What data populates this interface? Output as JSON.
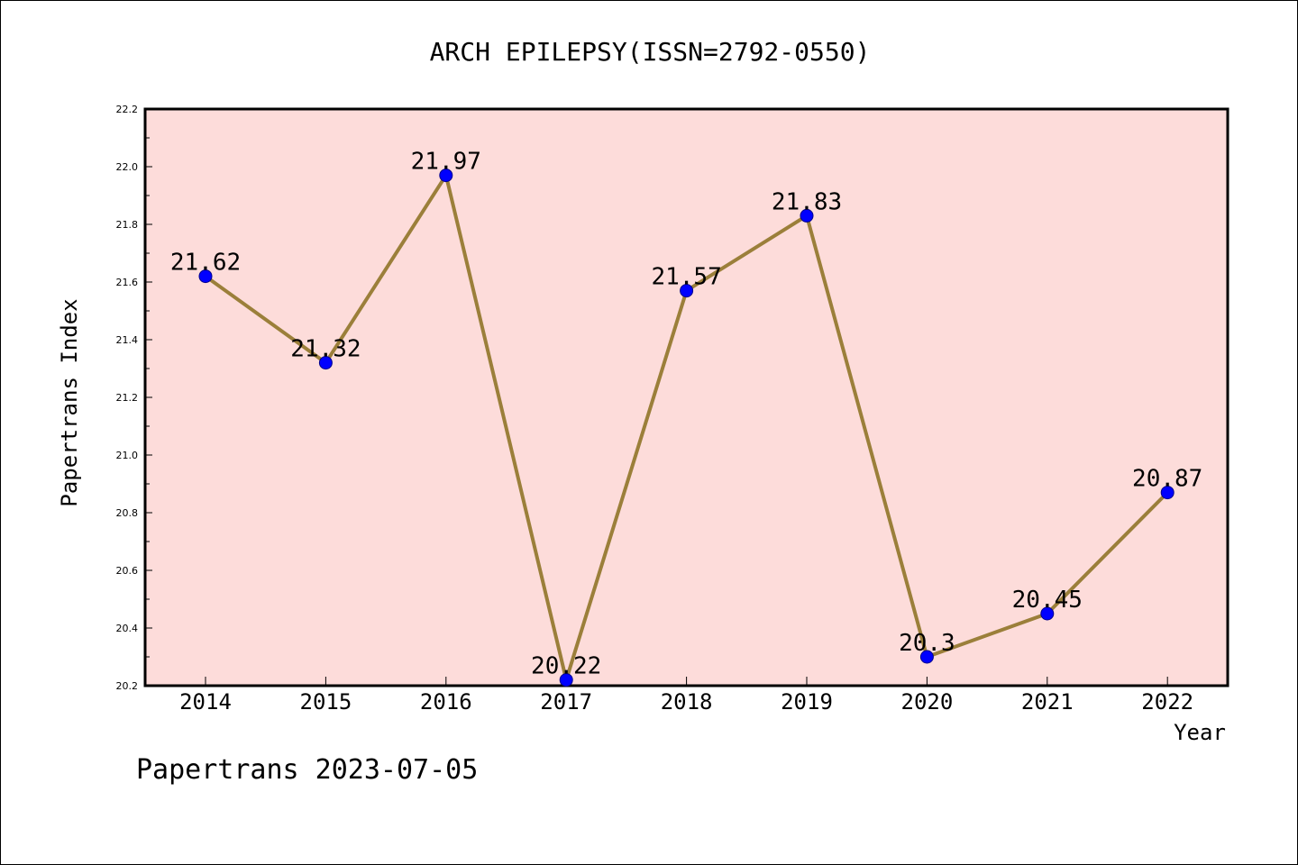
{
  "chart_data": {
    "type": "line",
    "title": "ARCH EPILEPSY(ISSN=2792-0550)",
    "xlabel": "Year",
    "ylabel": "Papertrans Index",
    "categories": [
      "2014",
      "2015",
      "2016",
      "2017",
      "2018",
      "2019",
      "2020",
      "2021",
      "2022"
    ],
    "series": [
      {
        "values": [
          21.62,
          21.32,
          21.97,
          20.22,
          21.57,
          21.83,
          20.3,
          20.45,
          20.87
        ],
        "line_color": "#9b7f3a",
        "marker_color": "#0000ff"
      }
    ],
    "data_labels": [
      "21.62",
      "21.32",
      "21.97",
      "20.22",
      "21.57",
      "21.83",
      "20.3",
      "20.45",
      "20.87"
    ],
    "ylim": [
      20.2,
      22.2
    ],
    "yticks": [
      "20.2",
      "20.4",
      "20.6",
      "20.8",
      "21.0",
      "21.2",
      "21.4",
      "21.6",
      "21.8",
      "22.0",
      "22.2"
    ],
    "plot_background": "#fddcda",
    "grid": false,
    "legend": "none"
  },
  "footer": "Papertrans 2023-07-05"
}
